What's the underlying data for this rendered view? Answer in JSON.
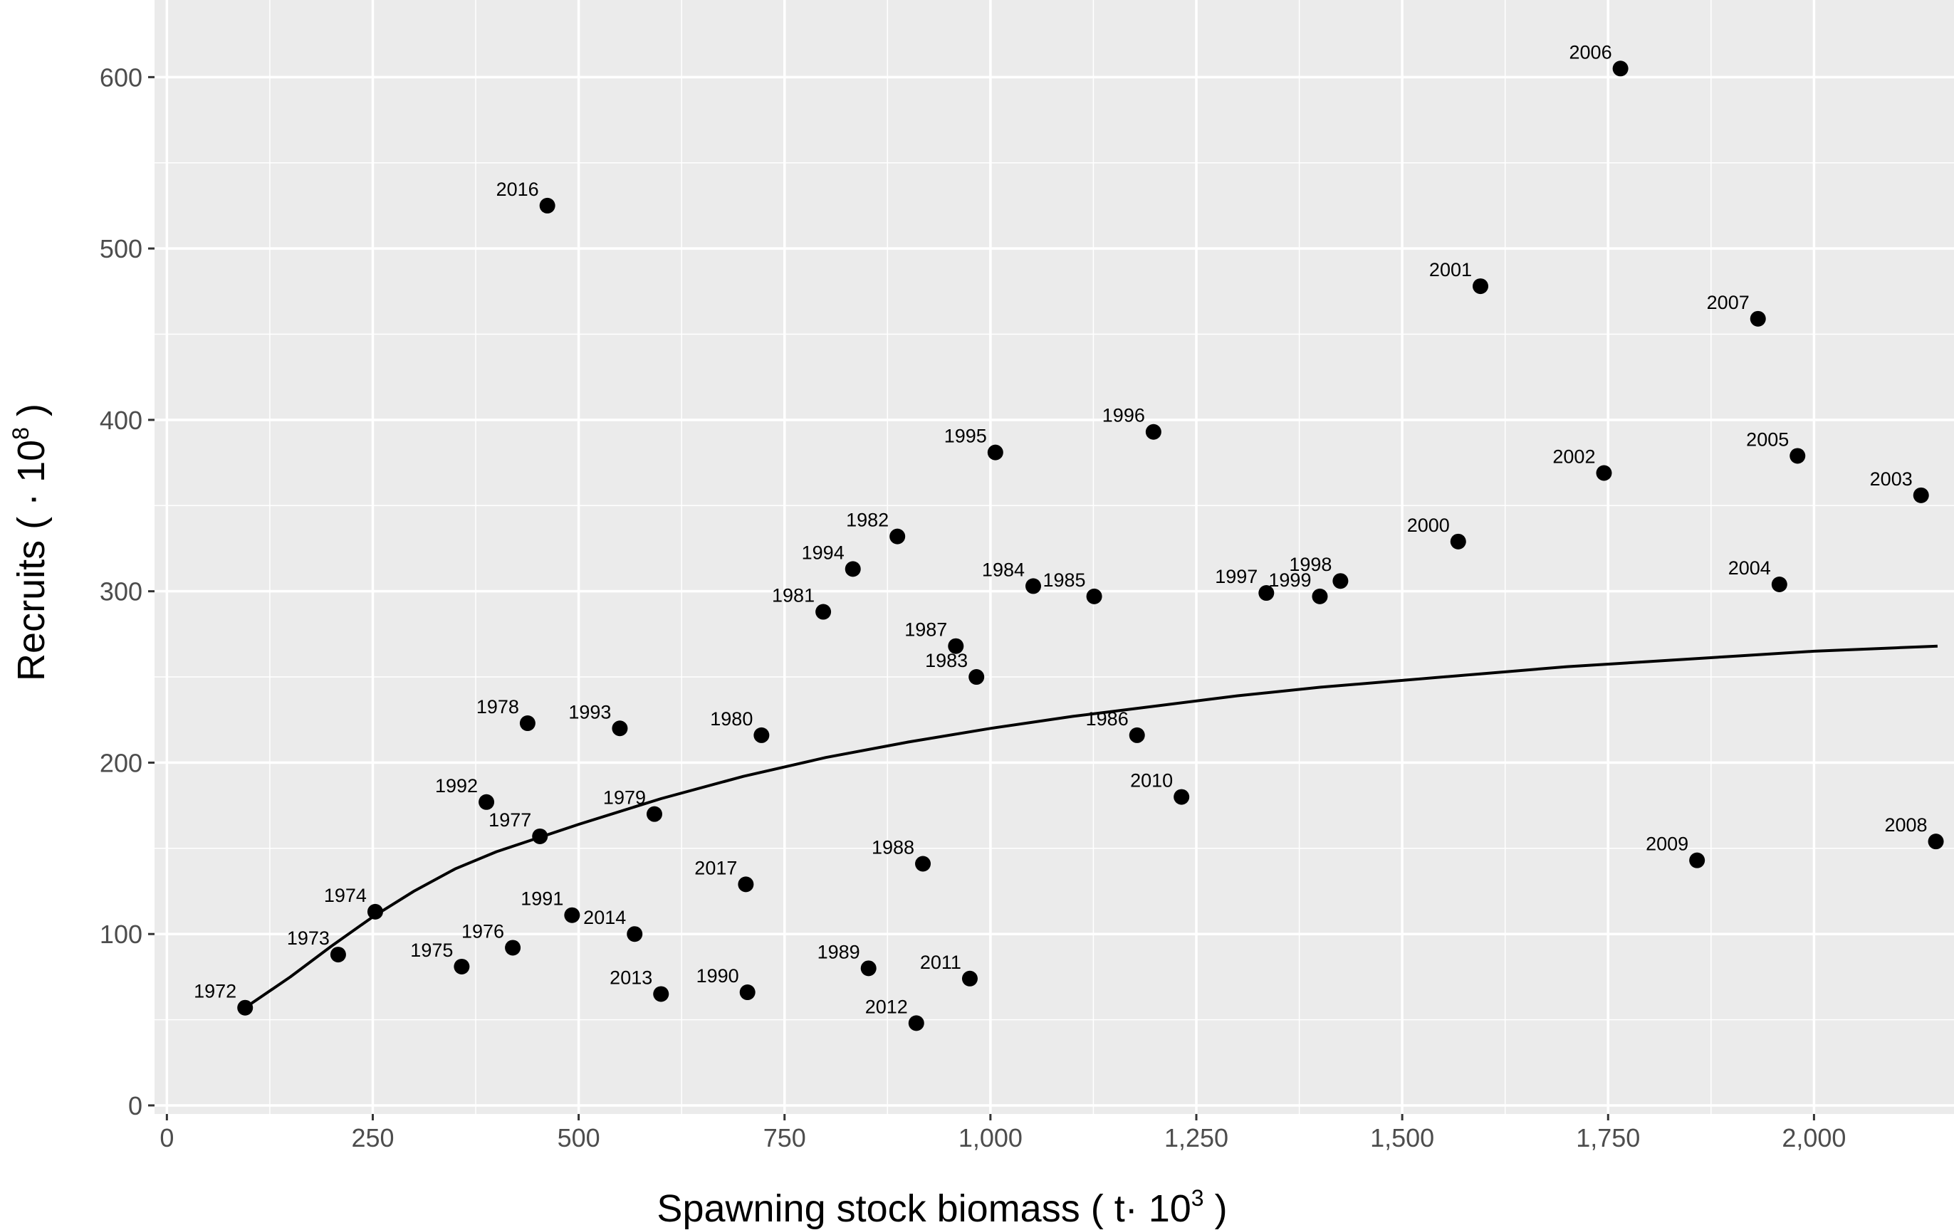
{
  "chart_data": {
    "type": "scatter",
    "title": "",
    "xlabel": {
      "prefix": "Spawning stock biomass ( t·  10",
      "sup": "3",
      "suffix": " )"
    },
    "ylabel": {
      "prefix": "Recruits ( ·  10",
      "sup": "8",
      "suffix": " )"
    },
    "xlim": [
      -15,
      2170
    ],
    "ylim": [
      -5,
      645
    ],
    "xticks": [
      0,
      250,
      500,
      750,
      1000,
      1250,
      1500,
      1750,
      2000
    ],
    "xtick_labels": [
      "0",
      "250",
      "500",
      "750",
      "1,000",
      "1,250",
      "1,500",
      "1,750",
      "2,000"
    ],
    "yticks": [
      0,
      100,
      200,
      300,
      400,
      500,
      600
    ],
    "ytick_labels": [
      "0",
      "100",
      "200",
      "300",
      "400",
      "500",
      "600"
    ],
    "grid": true,
    "background": "#ebebeb",
    "grid_major_color": "#ffffff",
    "point_color": "#000000",
    "points": [
      {
        "label": "1972",
        "x": 95,
        "y": 57
      },
      {
        "label": "1973",
        "x": 208,
        "y": 88
      },
      {
        "label": "1974",
        "x": 253,
        "y": 113
      },
      {
        "label": "1975",
        "x": 358,
        "y": 81
      },
      {
        "label": "1976",
        "x": 420,
        "y": 92
      },
      {
        "label": "1977",
        "x": 453,
        "y": 157
      },
      {
        "label": "1978",
        "x": 438,
        "y": 223
      },
      {
        "label": "1979",
        "x": 592,
        "y": 170
      },
      {
        "label": "1980",
        "x": 722,
        "y": 216
      },
      {
        "label": "1981",
        "x": 797,
        "y": 288
      },
      {
        "label": "1982",
        "x": 887,
        "y": 332
      },
      {
        "label": "1983",
        "x": 983,
        "y": 250
      },
      {
        "label": "1984",
        "x": 1052,
        "y": 303
      },
      {
        "label": "1985",
        "x": 1126,
        "y": 297
      },
      {
        "label": "1986",
        "x": 1178,
        "y": 216
      },
      {
        "label": "1987",
        "x": 958,
        "y": 268
      },
      {
        "label": "1988",
        "x": 918,
        "y": 141
      },
      {
        "label": "1989",
        "x": 852,
        "y": 80
      },
      {
        "label": "1990",
        "x": 705,
        "y": 66
      },
      {
        "label": "1991",
        "x": 492,
        "y": 111
      },
      {
        "label": "1992",
        "x": 388,
        "y": 177
      },
      {
        "label": "1993",
        "x": 550,
        "y": 220
      },
      {
        "label": "1994",
        "x": 833,
        "y": 313
      },
      {
        "label": "1995",
        "x": 1006,
        "y": 381
      },
      {
        "label": "1996",
        "x": 1198,
        "y": 393
      },
      {
        "label": "1997",
        "x": 1335,
        "y": 299
      },
      {
        "label": "1998",
        "x": 1425,
        "y": 306
      },
      {
        "label": "1999",
        "x": 1400,
        "y": 297
      },
      {
        "label": "2000",
        "x": 1568,
        "y": 329
      },
      {
        "label": "2001",
        "x": 1595,
        "y": 478
      },
      {
        "label": "2002",
        "x": 1745,
        "y": 369
      },
      {
        "label": "2003",
        "x": 2130,
        "y": 356
      },
      {
        "label": "2004",
        "x": 1958,
        "y": 304
      },
      {
        "label": "2005",
        "x": 1980,
        "y": 379
      },
      {
        "label": "2006",
        "x": 1765,
        "y": 605
      },
      {
        "label": "2007",
        "x": 1932,
        "y": 459
      },
      {
        "label": "2008",
        "x": 2148,
        "y": 154
      },
      {
        "label": "2009",
        "x": 1858,
        "y": 143
      },
      {
        "label": "2010",
        "x": 1232,
        "y": 180
      },
      {
        "label": "2011",
        "x": 975,
        "y": 74
      },
      {
        "label": "2012",
        "x": 910,
        "y": 48
      },
      {
        "label": "2013",
        "x": 600,
        "y": 65
      },
      {
        "label": "2014",
        "x": 568,
        "y": 100
      },
      {
        "label": "2016",
        "x": 462,
        "y": 525
      },
      {
        "label": "2017",
        "x": 703,
        "y": 129
      }
    ],
    "fit_line": {
      "type": "line",
      "color": "#000000",
      "x": [
        95,
        150,
        200,
        250,
        300,
        350,
        400,
        450,
        500,
        600,
        700,
        800,
        900,
        1000,
        1100,
        1200,
        1300,
        1400,
        1500,
        1600,
        1700,
        1800,
        1900,
        2000,
        2100,
        2150
      ],
      "y": [
        57,
        75,
        93,
        110,
        125,
        138,
        148,
        156,
        164,
        179,
        192,
        203,
        212,
        220,
        227,
        233,
        239,
        244,
        248,
        252,
        256,
        259,
        262,
        265,
        267,
        268
      ]
    }
  }
}
